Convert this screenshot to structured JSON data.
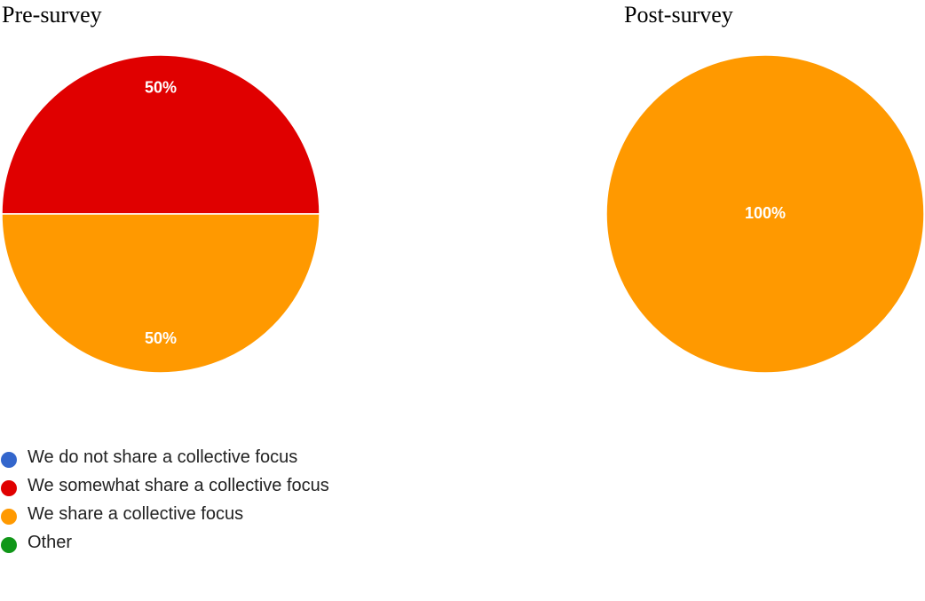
{
  "chart_data": [
    {
      "type": "pie",
      "title": "Pre-survey",
      "categories": [
        "We do not share a collective focus",
        "We somewhat share a collective focus",
        "We share a collective focus",
        "Other"
      ],
      "values": [
        0,
        50,
        50,
        0
      ],
      "value_labels": [
        "",
        "50%",
        "50%",
        ""
      ]
    },
    {
      "type": "pie",
      "title": "Post-survey",
      "categories": [
        "We do not share a collective focus",
        "We somewhat share a collective focus",
        "We share a collective focus",
        "Other"
      ],
      "values": [
        0,
        0,
        100,
        0
      ],
      "value_labels": [
        "",
        "",
        "100%",
        ""
      ]
    }
  ],
  "colors": [
    "#3366cc",
    "#e00000",
    "#ff9900",
    "#109618"
  ],
  "legend": {
    "placement": "bottom-left",
    "items": [
      {
        "label": "We do not share a collective focus",
        "color": "#3366cc"
      },
      {
        "label": "We somewhat share a collective focus",
        "color": "#e00000"
      },
      {
        "label": "We share a collective focus",
        "color": "#ff9900"
      },
      {
        "label": "Other",
        "color": "#109618"
      }
    ]
  }
}
